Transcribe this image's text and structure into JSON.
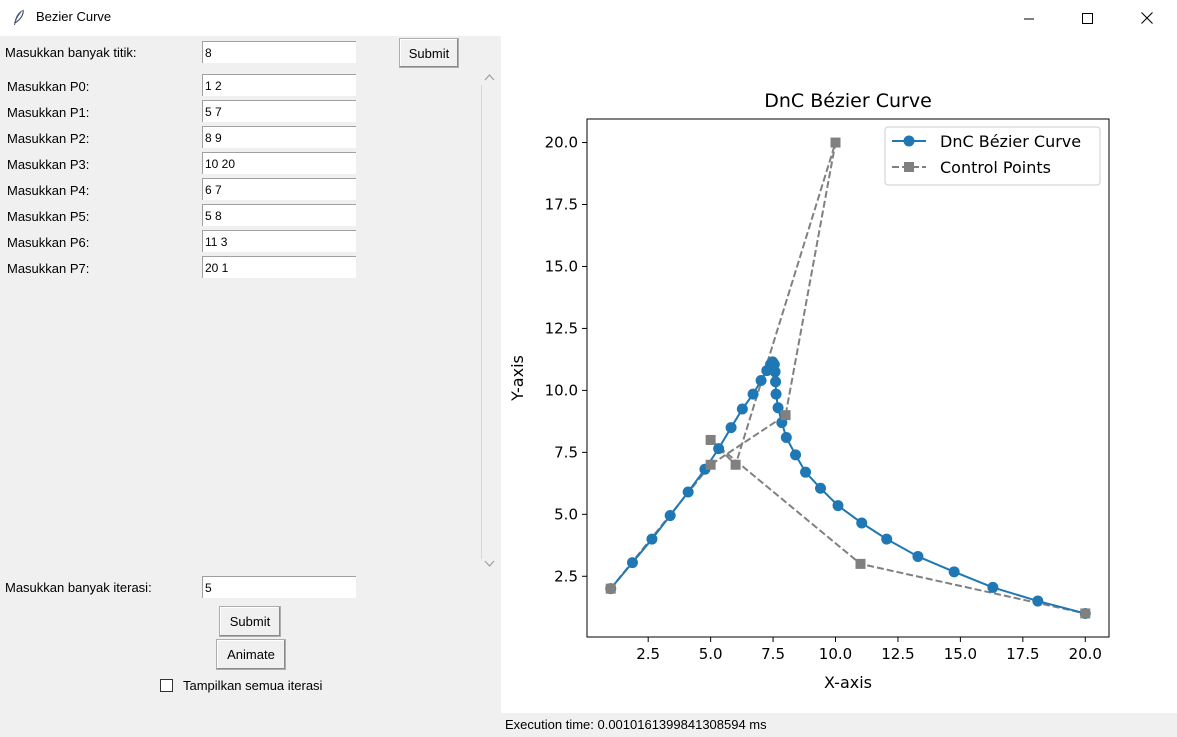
{
  "window": {
    "title": "Bezier Curve"
  },
  "form": {
    "num_points_label": "Masukkan banyak titik:",
    "num_points_value": "8",
    "submit_label": "Submit",
    "points": [
      {
        "label": "Masukkan P0:",
        "value": "1 2"
      },
      {
        "label": "Masukkan P1:",
        "value": "5 7"
      },
      {
        "label": "Masukkan P2:",
        "value": "8 9"
      },
      {
        "label": "Masukkan P3:",
        "value": "10 20"
      },
      {
        "label": "Masukkan P4:",
        "value": "6 7"
      },
      {
        "label": "Masukkan P5:",
        "value": "5 8"
      },
      {
        "label": "Masukkan P6:",
        "value": "11 3"
      },
      {
        "label": "Masukkan P7:",
        "value": "20 1"
      }
    ],
    "iterations_label": "Masukkan banyak iterasi:",
    "iterations_value": "5",
    "submit2_label": "Submit",
    "animate_label": "Animate",
    "show_all_label": "Tampilkan semua iterasi",
    "show_all_checked": false
  },
  "status": {
    "execution_time": "Execution time: 0.0010161399841308594 ms"
  },
  "chart_data": {
    "type": "line",
    "title": "DnC Bézier Curve",
    "xlabel": "X-axis",
    "ylabel": "Y-axis",
    "xlim": [
      0.05,
      20.95
    ],
    "ylim": [
      0.05,
      20.95
    ],
    "xticks": [
      "2.5",
      "5.0",
      "7.5",
      "10.0",
      "12.5",
      "15.0",
      "17.5",
      "20.0"
    ],
    "yticks": [
      "2.5",
      "5.0",
      "7.5",
      "10.0",
      "12.5",
      "15.0",
      "17.5",
      "20.0"
    ],
    "legend_position": "top-right",
    "grid": false,
    "series": [
      {
        "name": "DnC Bézier Curve",
        "color": "#1f77b4",
        "marker": "circle",
        "linestyle": "solid",
        "points": [
          [
            1,
            2
          ],
          [
            1.87,
            3.05
          ],
          [
            2.65,
            4.0
          ],
          [
            3.38,
            4.95
          ],
          [
            4.1,
            5.9
          ],
          [
            4.77,
            6.82
          ],
          [
            5.32,
            7.65
          ],
          [
            5.82,
            8.5
          ],
          [
            6.27,
            9.25
          ],
          [
            6.7,
            9.85
          ],
          [
            7.02,
            10.4
          ],
          [
            7.25,
            10.8
          ],
          [
            7.4,
            11.05
          ],
          [
            7.48,
            11.15
          ],
          [
            7.55,
            11.05
          ],
          [
            7.58,
            10.75
          ],
          [
            7.6,
            10.35
          ],
          [
            7.62,
            9.85
          ],
          [
            7.7,
            9.3
          ],
          [
            7.85,
            8.7
          ],
          [
            8.03,
            8.1
          ],
          [
            8.4,
            7.4
          ],
          [
            8.8,
            6.7
          ],
          [
            9.4,
            6.05
          ],
          [
            10.1,
            5.35
          ],
          [
            11.05,
            4.65
          ],
          [
            12.05,
            4.0
          ],
          [
            13.3,
            3.3
          ],
          [
            14.75,
            2.68
          ],
          [
            16.3,
            2.05
          ],
          [
            18.1,
            1.5
          ],
          [
            20,
            1
          ]
        ]
      },
      {
        "name": "Control Points",
        "color": "#808080",
        "marker": "square",
        "linestyle": "dashed",
        "points": [
          [
            1,
            2
          ],
          [
            5,
            7
          ],
          [
            8,
            9
          ],
          [
            10,
            20
          ],
          [
            6,
            7
          ],
          [
            5,
            8
          ],
          [
            11,
            3
          ],
          [
            20,
            1
          ]
        ]
      }
    ]
  }
}
